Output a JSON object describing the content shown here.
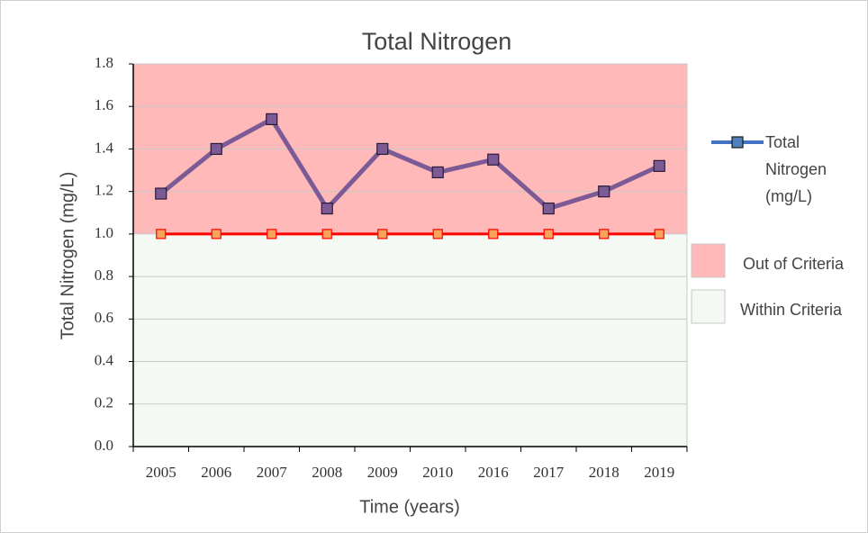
{
  "chart_data": {
    "type": "line",
    "title": "Total Nitrogen",
    "xlabel": "Time (years)",
    "ylabel": "Total Nitrogen (mg/L)",
    "categories": [
      "2005",
      "2006",
      "2007",
      "2008",
      "2009",
      "2010",
      "2016",
      "2017",
      "2018",
      "2019"
    ],
    "series": [
      {
        "name": "Total Nitrogen (mg/L)",
        "color": "#7b5a95",
        "legend_color": "#4472c4",
        "values": [
          1.19,
          1.4,
          1.54,
          1.12,
          1.4,
          1.29,
          1.35,
          1.12,
          1.2,
          1.32
        ]
      },
      {
        "color": "#ff0000",
        "marker_color": "#f7a35c",
        "values": [
          1.0,
          1.0,
          1.0,
          1.0,
          1.0,
          1.0,
          1.0,
          1.0,
          1.0,
          1.0
        ]
      }
    ],
    "bands": [
      {
        "label": "Out of Criteria",
        "from": 1.0,
        "to": 1.8,
        "color": "#ffb9b9"
      },
      {
        "label": "Within Criteria",
        "from": 0,
        "to": 1.0,
        "color": "#f5f9f3"
      }
    ],
    "ylim": [
      0,
      1.8
    ],
    "yticks": [
      {
        "value": 0,
        "label": "0.0"
      },
      0.2,
      0.4,
      0.6,
      0.8,
      {
        "value": 1.0,
        "label": "1.0"
      },
      1.2,
      1.4,
      1.6,
      1.8
    ],
    "grid": true
  }
}
